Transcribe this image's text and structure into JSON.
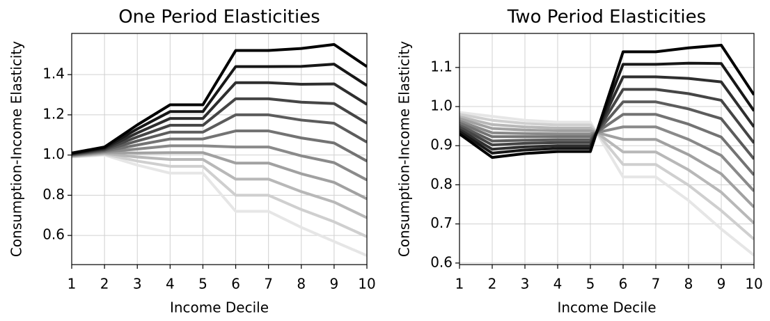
{
  "chart_data": [
    {
      "type": "line",
      "title": "One Period Elasticities",
      "xlabel": "Income Decile",
      "ylabel": "Consumption-Income Elasticity",
      "x": [
        1,
        2,
        3,
        4,
        5,
        6,
        7,
        8,
        9,
        10
      ],
      "xlim": [
        1,
        10
      ],
      "xticks": [
        1,
        2,
        3,
        4,
        5,
        6,
        7,
        8,
        9,
        10
      ],
      "ylim": [
        0.455,
        1.605
      ],
      "yticks": [
        0.6,
        0.8,
        {
          "value": 1,
          "label": "1.0"
        },
        1.2,
        1.4
      ],
      "grid": true,
      "series": [
        {
          "color": "#000000",
          "values": [
            1.01,
            1.04,
            1.15,
            1.25,
            1.25,
            1.52,
            1.52,
            1.53,
            1.55,
            1.44
          ]
        },
        {
          "color": "#171717",
          "values": [
            1.008,
            1.036,
            1.13,
            1.216,
            1.216,
            1.44,
            1.44,
            1.441,
            1.452,
            1.346
          ]
        },
        {
          "color": "#2e2e2e",
          "values": [
            1.006,
            1.032,
            1.11,
            1.182,
            1.182,
            1.36,
            1.36,
            1.352,
            1.354,
            1.252
          ]
        },
        {
          "color": "#454545",
          "values": [
            1.004,
            1.028,
            1.09,
            1.148,
            1.148,
            1.28,
            1.28,
            1.263,
            1.256,
            1.158
          ]
        },
        {
          "color": "#5c5c5c",
          "values": [
            1.002,
            1.024,
            1.07,
            1.114,
            1.114,
            1.2,
            1.2,
            1.174,
            1.158,
            1.064
          ]
        },
        {
          "color": "#737373",
          "values": [
            1.0,
            1.02,
            1.05,
            1.08,
            1.08,
            1.12,
            1.12,
            1.085,
            1.06,
            0.97
          ]
        },
        {
          "color": "#8a8a8a",
          "values": [
            0.998,
            1.016,
            1.03,
            1.046,
            1.046,
            1.04,
            1.04,
            0.996,
            0.962,
            0.876
          ]
        },
        {
          "color": "#a1a1a1",
          "values": [
            0.996,
            1.012,
            1.01,
            1.012,
            1.012,
            0.96,
            0.96,
            0.907,
            0.864,
            0.782
          ]
        },
        {
          "color": "#b8b8b8",
          "values": [
            0.994,
            1.008,
            0.99,
            0.978,
            0.978,
            0.88,
            0.88,
            0.818,
            0.766,
            0.688
          ]
        },
        {
          "color": "#cfcfcf",
          "values": [
            0.992,
            1.004,
            0.97,
            0.944,
            0.944,
            0.8,
            0.8,
            0.729,
            0.668,
            0.594
          ]
        },
        {
          "color": "#e6e6e6",
          "values": [
            0.99,
            1.0,
            0.95,
            0.91,
            0.91,
            0.72,
            0.72,
            0.64,
            0.57,
            0.5
          ]
        }
      ]
    },
    {
      "type": "line",
      "title": "Two Period Elasticities",
      "xlabel": "Income Decile",
      "ylabel": "Consumption-Income Elasticity",
      "x": [
        1,
        2,
        3,
        4,
        5,
        6,
        7,
        8,
        9,
        10
      ],
      "xlim": [
        1,
        10
      ],
      "xticks": [
        1,
        2,
        3,
        4,
        5,
        6,
        7,
        8,
        9,
        10
      ],
      "ylim": [
        0.596,
        1.187
      ],
      "yticks": [
        0.6,
        0.7,
        0.8,
        0.9,
        {
          "value": 1,
          "label": "1.0"
        },
        1.1
      ],
      "grid": true,
      "series": [
        {
          "color": "#000000",
          "values": [
            0.93,
            0.87,
            0.88,
            0.885,
            0.885,
            1.14,
            1.14,
            1.15,
            1.157,
            1.03
          ]
        },
        {
          "color": "#171717",
          "values": [
            0.936,
            0.881,
            0.889,
            0.893,
            0.893,
            1.108,
            1.108,
            1.111,
            1.11,
            0.989
          ]
        },
        {
          "color": "#2e2e2e",
          "values": [
            0.941,
            0.891,
            0.897,
            0.9,
            0.9,
            1.076,
            1.076,
            1.072,
            1.063,
            0.948
          ]
        },
        {
          "color": "#454545",
          "values": [
            0.947,
            0.902,
            0.906,
            0.908,
            0.908,
            1.044,
            1.044,
            1.033,
            1.016,
            0.907
          ]
        },
        {
          "color": "#5c5c5c",
          "values": [
            0.952,
            0.912,
            0.914,
            0.915,
            0.915,
            1.012,
            1.012,
            0.994,
            0.969,
            0.866
          ]
        },
        {
          "color": "#737373",
          "values": [
            0.958,
            0.923,
            0.923,
            0.923,
            0.923,
            0.98,
            0.98,
            0.955,
            0.922,
            0.825
          ]
        },
        {
          "color": "#8a8a8a",
          "values": [
            0.963,
            0.933,
            0.931,
            0.93,
            0.93,
            0.948,
            0.948,
            0.916,
            0.875,
            0.784
          ]
        },
        {
          "color": "#a1a1a1",
          "values": [
            0.969,
            0.944,
            0.94,
            0.938,
            0.938,
            0.916,
            0.916,
            0.877,
            0.828,
            0.743
          ]
        },
        {
          "color": "#b8b8b8",
          "values": [
            0.974,
            0.954,
            0.948,
            0.945,
            0.945,
            0.884,
            0.884,
            0.838,
            0.781,
            0.702
          ]
        },
        {
          "color": "#cfcfcf",
          "values": [
            0.98,
            0.965,
            0.957,
            0.953,
            0.953,
            0.852,
            0.852,
            0.799,
            0.734,
            0.661
          ]
        },
        {
          "color": "#e6e6e6",
          "values": [
            0.985,
            0.975,
            0.965,
            0.96,
            0.96,
            0.82,
            0.82,
            0.76,
            0.687,
            0.62
          ]
        }
      ]
    }
  ]
}
